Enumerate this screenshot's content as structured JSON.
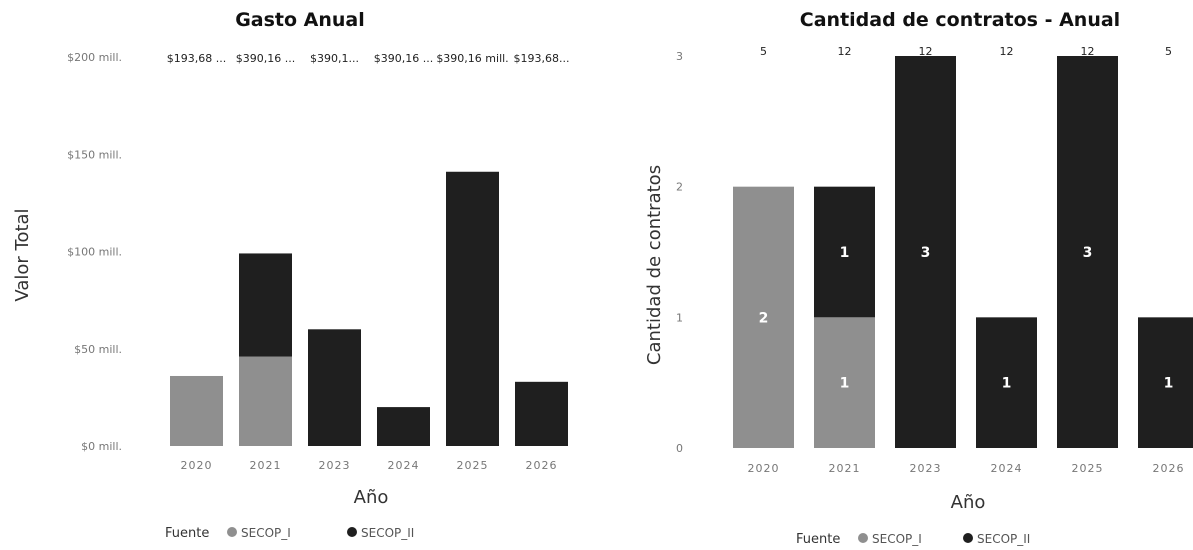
{
  "colors": {
    "SECOP_I": "#8f8f8f",
    "SECOP_II": "#1f1f1f"
  },
  "legend": {
    "title": "Fuente",
    "items": [
      "SECOP_I",
      "SECOP_II"
    ]
  },
  "chart_data": [
    {
      "type": "bar",
      "stacked": true,
      "title": "Gasto Anual",
      "xlabel": "Año",
      "ylabel": "Valor Total",
      "categories": [
        "2020",
        "2021",
        "2023",
        "2024",
        "2025",
        "2026"
      ],
      "yticks": [
        "$0 mill.",
        "$50 mill.",
        "$100 mill.",
        "$150 mill.",
        "$200 mill."
      ],
      "ylim": [
        0,
        200
      ],
      "series": [
        {
          "name": "SECOP_I",
          "values": [
            36,
            46,
            0,
            0,
            0,
            0
          ]
        },
        {
          "name": "SECOP_II",
          "values": [
            0,
            53,
            60,
            20,
            141,
            33
          ]
        }
      ],
      "top_labels": [
        "$193,68 ...",
        "$390,16 ...",
        "$390,1...",
        "$390,16 ...",
        "$390,16 mill.",
        "$193,68..."
      ],
      "legend_position": "bottom"
    },
    {
      "type": "bar",
      "stacked": true,
      "title": "Cantidad de contratos - Anual",
      "xlabel": "Año",
      "ylabel": "Cantidad de contratos",
      "categories": [
        "2020",
        "2021",
        "2023",
        "2024",
        "2025",
        "2026"
      ],
      "yticks": [
        "0",
        "1",
        "2",
        "3"
      ],
      "ylim": [
        0,
        3
      ],
      "series": [
        {
          "name": "SECOP_I",
          "values": [
            2,
            1,
            0,
            0,
            0,
            0
          ]
        },
        {
          "name": "SECOP_II",
          "values": [
            0,
            1,
            3,
            1,
            3,
            1
          ]
        }
      ],
      "top_labels": [
        "5",
        "12",
        "12",
        "12",
        "12",
        "5"
      ],
      "legend_position": "bottom"
    }
  ]
}
